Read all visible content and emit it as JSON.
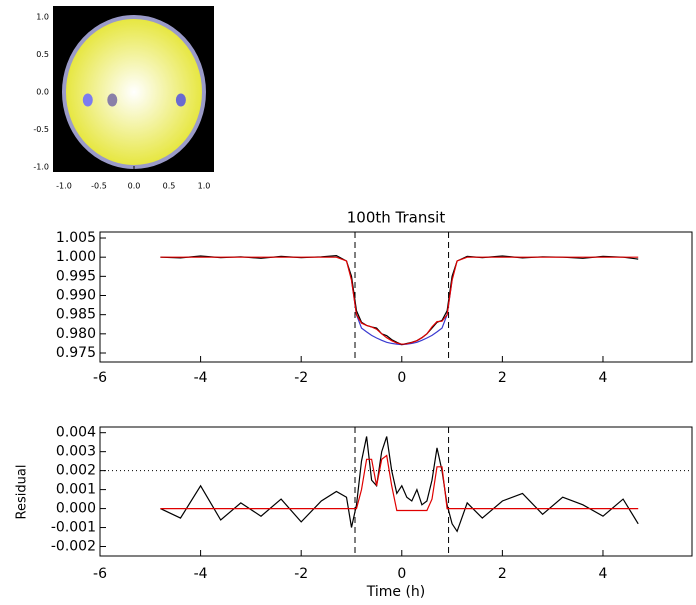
{
  "chart_data": [
    {
      "type": "scatter",
      "disk_radius": 1,
      "disk_color": "#e6e63c",
      "disk_edge_color": "#9a9ac8",
      "x": [
        -0.66,
        -0.31,
        0.67
      ],
      "values": [
        -0.107,
        -0.107,
        -0.107
      ],
      "colors": [
        "#7b7bf0",
        "#8a80a8",
        "#6a6ad0"
      ],
      "xlim": [
        -1.157,
        1.143
      ],
      "ylim": [
        -1.067,
        1.147
      ],
      "xticks": [
        {
          "value": -1,
          "label": "-1.0"
        },
        -0.5,
        {
          "value": 0,
          "label": "0.0"
        },
        0.5,
        {
          "value": 1,
          "label": "1.0"
        }
      ],
      "yticks": [
        {
          "value": -1,
          "label": "-1.0"
        },
        -0.5,
        {
          "value": 0,
          "label": "0.0"
        },
        0.5,
        {
          "value": 1,
          "label": "1.0"
        }
      ]
    },
    {
      "type": "line",
      "title": "100th Transit",
      "x": [
        -4.8,
        -4.4,
        -4.0,
        -3.6,
        -3.2,
        -2.8,
        -2.4,
        -2.0,
        -1.6,
        -1.3,
        -1.1,
        -1.0,
        -0.9,
        -0.8,
        -0.7,
        -0.6,
        -0.5,
        -0.4,
        -0.3,
        -0.2,
        -0.1,
        0,
        0.1,
        0.2,
        0.3,
        0.4,
        0.5,
        0.6,
        0.7,
        0.8,
        0.9,
        1.0,
        1.1,
        1.3,
        1.6,
        2.0,
        2.4,
        2.8,
        3.2,
        3.6,
        4.0,
        4.4,
        4.7
      ],
      "series": [
        {
          "color": "#3a3ad0",
          "values": [
            null,
            null,
            null,
            null,
            null,
            null,
            null,
            null,
            null,
            null,
            null,
            0.994,
            0.985,
            0.9815,
            0.9805,
            0.9796,
            0.9789,
            0.9783,
            0.9778,
            0.9775,
            0.9773,
            0.9772,
            0.9773,
            0.9775,
            0.9778,
            0.9783,
            0.9789,
            0.9796,
            0.9805,
            0.9815,
            0.985,
            0.994,
            null,
            null,
            null,
            null,
            null,
            null,
            null,
            null,
            null,
            null,
            null
          ]
        },
        {
          "color": "#000000",
          "values": [
            1.0,
            0.9998,
            1.0003,
            0.9999,
            1.0001,
            0.9997,
            1.0002,
            0.9999,
            1.0001,
            1.0004,
            0.999,
            0.995,
            0.986,
            0.983,
            0.9822,
            0.9818,
            0.9815,
            0.98,
            0.9795,
            0.9785,
            0.9778,
            0.9772,
            0.9775,
            0.9778,
            0.9782,
            0.979,
            0.98,
            0.9815,
            0.983,
            0.9835,
            0.986,
            0.995,
            0.999,
            1.0002,
            0.9999,
            1.0003,
            0.9998,
            1.0001,
            1.0,
            0.9997,
            1.0002,
            1.0,
            0.9995
          ]
        },
        {
          "color": "#e00000",
          "values": [
            1,
            1,
            1,
            1,
            1,
            1,
            1,
            1,
            1,
            1,
            0.999,
            0.994,
            0.985,
            0.9828,
            0.9822,
            0.9818,
            0.9812,
            0.98,
            0.979,
            0.9782,
            0.9776,
            0.9773,
            0.9774,
            0.9777,
            0.9782,
            0.979,
            0.98,
            0.9818,
            0.9832,
            0.9833,
            0.985,
            0.994,
            0.999,
            1,
            1,
            1,
            1,
            1,
            1,
            1,
            1,
            1,
            1
          ]
        }
      ],
      "vlines": [
        -0.93,
        0.93
      ],
      "xlim": [
        -6,
        5.77
      ],
      "ylim": [
        0.97265,
        1.00657
      ],
      "xticks": [
        -6,
        -4,
        -2,
        0,
        2,
        4
      ],
      "yticks": [
        0.975,
        {
          "value": 0.98,
          "label": "0.980"
        },
        0.985,
        {
          "value": 0.99,
          "label": "0.990"
        },
        0.995,
        {
          "value": 1,
          "label": "1.000"
        },
        1.005
      ]
    },
    {
      "type": "line",
      "xlabel": "Time (h)",
      "ylabel": "Residual",
      "x": [
        -4.8,
        -4.4,
        -4.0,
        -3.6,
        -3.2,
        -2.8,
        -2.4,
        -2.0,
        -1.6,
        -1.3,
        -1.1,
        -1.0,
        -0.9,
        -0.8,
        -0.7,
        -0.6,
        -0.5,
        -0.4,
        -0.3,
        -0.2,
        -0.1,
        0,
        0.1,
        0.2,
        0.3,
        0.4,
        0.5,
        0.6,
        0.7,
        0.8,
        0.9,
        1.0,
        1.1,
        1.3,
        1.6,
        2.0,
        2.4,
        2.8,
        3.2,
        3.6,
        4.0,
        4.4,
        4.7
      ],
      "series": [
        {
          "color": "#000000",
          "values": [
            0.0,
            -0.0005,
            0.0012,
            -0.0006,
            0.0003,
            -0.0004,
            0.0005,
            -0.0007,
            0.0004,
            0.0009,
            0.0006,
            -0.001,
            0.0002,
            0.0025,
            0.0038,
            0.0015,
            0.0012,
            0.003,
            0.0038,
            0.002,
            0.0008,
            0.0012,
            0.0006,
            0.0004,
            0.001,
            0.0002,
            0.0004,
            0.0015,
            0.0032,
            0.002,
            0.0002,
            -0.0008,
            -0.0012,
            0.0003,
            -0.0005,
            0.0004,
            0.0008,
            -0.0003,
            0.0006,
            0.0002,
            -0.0004,
            0.0005,
            -0.0008
          ]
        },
        {
          "color": "#e00000",
          "values": [
            0,
            0,
            0,
            0,
            0,
            0,
            0,
            0,
            0,
            0,
            0,
            0,
            0,
            0.001,
            0.0026,
            0.0026,
            0.0012,
            0.0026,
            0.0028,
            0.0012,
            -0.0001,
            -0.0001,
            -0.0001,
            -0.0001,
            -0.0001,
            -0.0001,
            -0.0001,
            0.0005,
            0.0022,
            0.0022,
            0,
            0,
            0,
            0,
            0,
            0,
            0,
            0,
            0,
            0,
            0,
            0,
            0
          ]
        }
      ],
      "vlines": [
        -0.93,
        0.93
      ],
      "hline": 0.002,
      "xlim": [
        -6,
        5.77
      ],
      "ylim": [
        -0.0025,
        0.0043
      ],
      "xticks": [
        -6,
        -4,
        -2,
        0,
        2,
        4
      ],
      "yticks": [
        -0.002,
        -0.001,
        {
          "value": 0,
          "label": "0.000"
        },
        0.001,
        0.002,
        0.003,
        0.004
      ]
    }
  ]
}
